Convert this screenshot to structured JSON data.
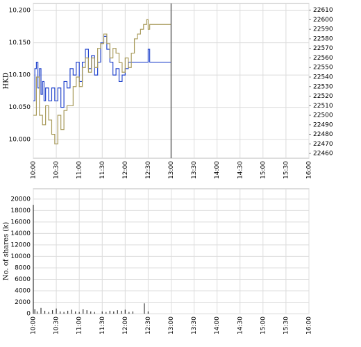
{
  "chart_data": [
    {
      "type": "line",
      "y_label": "HKD",
      "xlim": [
        "10:00",
        "16:00"
      ],
      "xticks": [
        "10:00",
        "10:30",
        "11:00",
        "11:30",
        "12:00",
        "12:30",
        "13:00",
        "13:30",
        "14:00",
        "14:30",
        "15:00",
        "15:30",
        "16:00"
      ],
      "ylim": [
        9.971,
        10.211
      ],
      "yticks": [
        {
          "value": 10.0,
          "label": "10.000"
        },
        {
          "value": 10.05,
          "label": "10.050"
        },
        {
          "value": 10.1,
          "label": "10.100"
        },
        {
          "value": 10.15,
          "label": "10.150"
        },
        {
          "value": 10.2,
          "label": "10.200"
        }
      ],
      "y2lim": [
        22455,
        22617
      ],
      "y2ticks": [
        22460,
        22470,
        22480,
        22490,
        22500,
        22510,
        22520,
        22530,
        22540,
        22550,
        22560,
        22570,
        22580,
        22590,
        22600,
        22610
      ],
      "grid": true,
      "series": [
        {
          "color": "#2244cc",
          "x": [
            "10:00",
            "10:02",
            "10:04",
            "10:06",
            "10:08",
            "10:10",
            "10:12",
            "10:14",
            "10:16",
            "10:20",
            "10:24",
            "10:28",
            "10:32",
            "10:36",
            "10:40",
            "10:44",
            "10:48",
            "10:52",
            "10:56",
            "11:00",
            "11:04",
            "11:08",
            "11:12",
            "11:16",
            "11:20",
            "11:24",
            "11:28",
            "11:32",
            "11:36",
            "11:40",
            "11:44",
            "11:48",
            "11:52",
            "11:56",
            "12:00",
            "12:04",
            "12:12",
            "12:20",
            "12:28",
            "12:30",
            "12:32",
            "13:00"
          ],
          "values": [
            10.06,
            10.11,
            10.12,
            10.08,
            10.11,
            10.07,
            10.09,
            10.06,
            10.08,
            10.06,
            10.08,
            10.06,
            10.08,
            10.05,
            10.09,
            10.08,
            10.11,
            10.1,
            10.12,
            10.09,
            10.12,
            10.14,
            10.11,
            10.13,
            10.1,
            10.12,
            10.15,
            10.16,
            10.14,
            10.12,
            10.1,
            10.11,
            10.09,
            10.1,
            10.11,
            10.12,
            10.12,
            10.12,
            10.12,
            10.14,
            10.12,
            10.12
          ]
        },
        {
          "color": "#a89a5a",
          "axis": "y2",
          "x": [
            "10:00",
            "10:04",
            "10:08",
            "10:12",
            "10:16",
            "10:20",
            "10:24",
            "10:28",
            "10:32",
            "10:36",
            "10:40",
            "10:44",
            "10:48",
            "10:52",
            "10:56",
            "11:00",
            "11:04",
            "11:08",
            "11:12",
            "11:16",
            "11:20",
            "11:24",
            "11:28",
            "11:32",
            "11:36",
            "11:40",
            "11:44",
            "11:48",
            "11:52",
            "11:56",
            "12:00",
            "12:04",
            "12:08",
            "12:12",
            "12:16",
            "12:20",
            "12:24",
            "12:28",
            "12:30",
            "12:32",
            "13:00"
          ],
          "values": [
            22500,
            22540,
            22500,
            22490,
            22510,
            22495,
            22480,
            22470,
            22500,
            22485,
            22505,
            22510,
            22510,
            22530,
            22540,
            22530,
            22550,
            22560,
            22545,
            22560,
            22550,
            22570,
            22575,
            22585,
            22575,
            22560,
            22570,
            22565,
            22555,
            22545,
            22560,
            22550,
            22565,
            22580,
            22585,
            22590,
            22595,
            22600,
            22590,
            22595,
            22595
          ]
        }
      ]
    },
    {
      "type": "bar",
      "y_label": "No. of shares (k)",
      "xlim": [
        "10:00",
        "16:00"
      ],
      "xticks": [
        "10:00",
        "10:30",
        "11:00",
        "11:30",
        "12:00",
        "12:30",
        "13:00",
        "13:30",
        "14:00",
        "14:30",
        "15:00",
        "15:30",
        "16:00"
      ],
      "ylim": [
        0,
        21800
      ],
      "yticks": [
        0,
        2000,
        4000,
        6000,
        8000,
        10000,
        12000,
        14000,
        16000,
        18000,
        20000
      ],
      "grid": true,
      "color": "#333333",
      "x": [
        "10:00",
        "10:02",
        "10:05",
        "10:10",
        "10:15",
        "10:20",
        "10:25",
        "10:30",
        "10:35",
        "10:40",
        "10:45",
        "10:50",
        "10:55",
        "11:00",
        "11:05",
        "11:10",
        "11:15",
        "11:20",
        "11:30",
        "11:35",
        "11:40",
        "11:45",
        "11:50",
        "11:55",
        "12:00",
        "12:05",
        "12:10",
        "12:25",
        "12:30"
      ],
      "values": [
        19000,
        800,
        400,
        1000,
        500,
        300,
        600,
        900,
        400,
        300,
        500,
        700,
        400,
        300,
        800,
        600,
        400,
        300,
        400,
        300,
        500,
        400,
        600,
        500,
        700,
        300,
        400,
        1800,
        400
      ]
    }
  ]
}
